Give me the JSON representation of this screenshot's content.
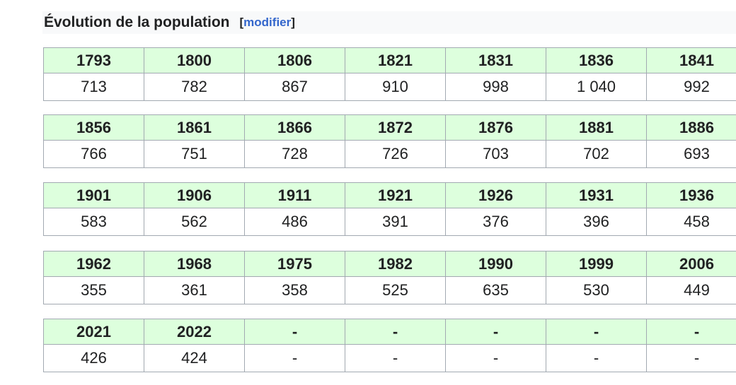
{
  "heading": {
    "title": "Évolution de la population",
    "bracket_open": "[",
    "edit_label": "modifier",
    "bracket_close": "]"
  },
  "colors": {
    "header_bg": "#ddffdd",
    "border": "#a2a9b1",
    "link": "#3366cc",
    "heading_bg": "#f8f9fa"
  },
  "tables": [
    {
      "years": [
        "1793",
        "1800",
        "1806",
        "1821",
        "1831",
        "1836",
        "1841"
      ],
      "values": [
        "713",
        "782",
        "867",
        "910",
        "998",
        "1 040",
        "992"
      ]
    },
    {
      "years": [
        "1856",
        "1861",
        "1866",
        "1872",
        "1876",
        "1881",
        "1886"
      ],
      "values": [
        "766",
        "751",
        "728",
        "726",
        "703",
        "702",
        "693"
      ]
    },
    {
      "years": [
        "1901",
        "1906",
        "1911",
        "1921",
        "1926",
        "1931",
        "1936"
      ],
      "values": [
        "583",
        "562",
        "486",
        "391",
        "376",
        "396",
        "458"
      ]
    },
    {
      "years": [
        "1962",
        "1968",
        "1975",
        "1982",
        "1990",
        "1999",
        "2006"
      ],
      "values": [
        "355",
        "361",
        "358",
        "525",
        "635",
        "530",
        "449"
      ]
    },
    {
      "years": [
        "2021",
        "2022",
        "-",
        "-",
        "-",
        "-",
        "-"
      ],
      "values": [
        "426",
        "424",
        "-",
        "-",
        "-",
        "-",
        "-"
      ]
    }
  ]
}
